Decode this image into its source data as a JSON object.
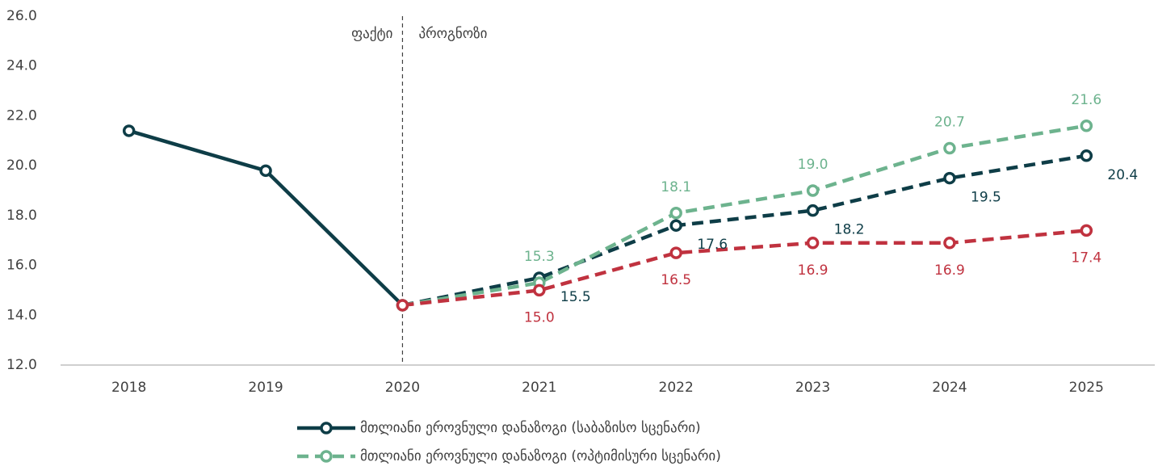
{
  "chart_data": {
    "type": "line",
    "categories": [
      "2018",
      "2019",
      "2020",
      "2021",
      "2022",
      "2023",
      "2024",
      "2025"
    ],
    "series": [
      {
        "name": "მთლიანი ეროვნული დანაზოგი (საბაზისო სცენარი)",
        "color": "#0e3d47",
        "dashed": false,
        "values": [
          21.4,
          19.8,
          14.4,
          15.5,
          17.6,
          18.2,
          19.5,
          20.4
        ],
        "value_labels": [
          null,
          null,
          null,
          "15.5",
          "17.6",
          "18.2",
          "19.5",
          "20.4"
        ],
        "label_position": "below-right"
      },
      {
        "name": "მთლიანი ეროვნული დანაზოგი (ოპტიმისური სცენარი)",
        "color": "#6db38e",
        "dashed": true,
        "values": [
          null,
          null,
          14.4,
          15.3,
          18.1,
          19.0,
          20.7,
          21.6
        ],
        "value_labels": [
          null,
          null,
          null,
          "15.3",
          "18.1",
          "19.0",
          "20.7",
          "21.6"
        ],
        "label_position": "above"
      },
      {
        "color": "#c0323f",
        "dashed": true,
        "values": [
          null,
          null,
          14.4,
          15.0,
          16.5,
          16.9,
          16.9,
          17.4
        ],
        "value_labels": [
          null,
          null,
          null,
          "15.0",
          "16.5",
          "16.9",
          "16.9",
          "17.4"
        ],
        "label_position": "below"
      }
    ],
    "forecast_start": "2020",
    "annotations": {
      "actual": "ფაქტი",
      "forecast": "პროგნოზი"
    },
    "ylim": [
      12,
      26
    ],
    "yticks": [
      {
        "value": 12,
        "label": "12.0"
      },
      {
        "value": 14,
        "label": "14.0"
      },
      {
        "value": 16,
        "label": "16.0"
      },
      {
        "value": 18,
        "label": "18.0"
      },
      {
        "value": 20,
        "label": "20.0"
      },
      {
        "value": 22,
        "label": "22.0"
      },
      {
        "value": 24,
        "label": "24.0"
      },
      {
        "value": 26,
        "label": "26.0"
      }
    ],
    "grid": false
  }
}
